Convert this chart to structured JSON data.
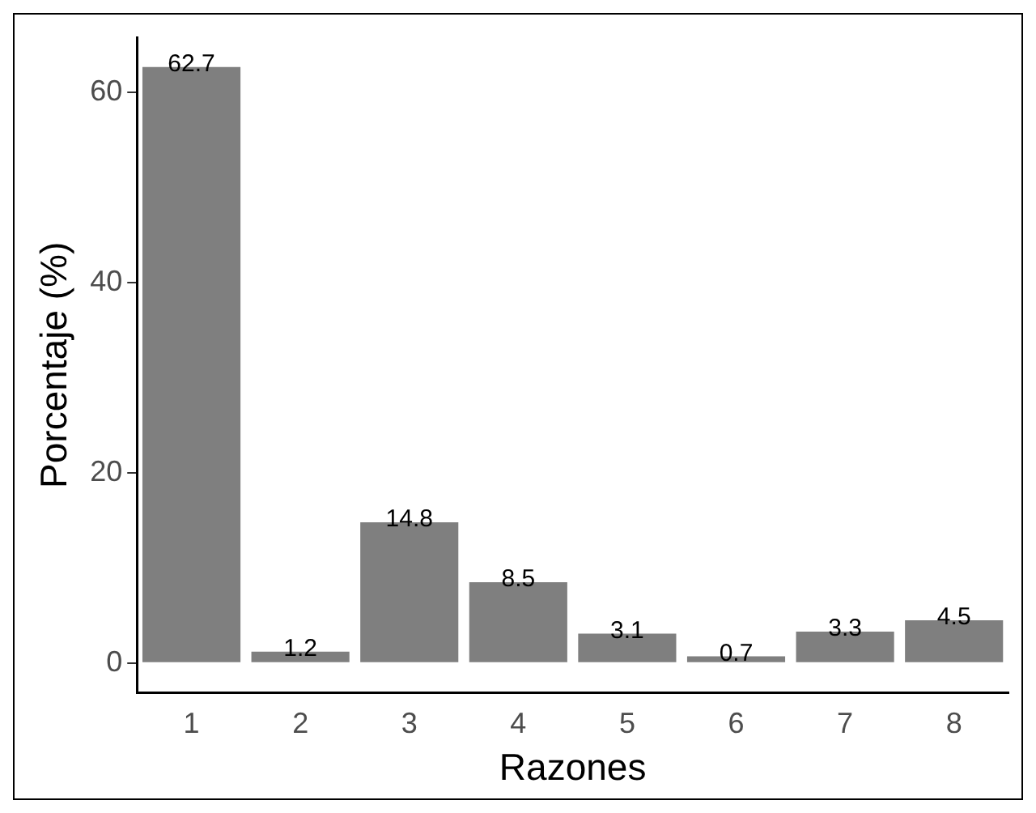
{
  "chart_data": {
    "type": "bar",
    "xlabel": "Razones",
    "ylabel": "Porcentaje (%)",
    "categories": [
      "1",
      "2",
      "3",
      "4",
      "5",
      "6",
      "7",
      "8"
    ],
    "values": [
      62.7,
      1.2,
      14.8,
      8.5,
      3.1,
      0.7,
      3.3,
      4.5
    ],
    "color": "#7f7f7f",
    "ylim": [
      -3.135,
      65.835
    ],
    "yticks": [
      0,
      20,
      40,
      60
    ],
    "grid": false,
    "legend": false,
    "data_labels": true
  }
}
